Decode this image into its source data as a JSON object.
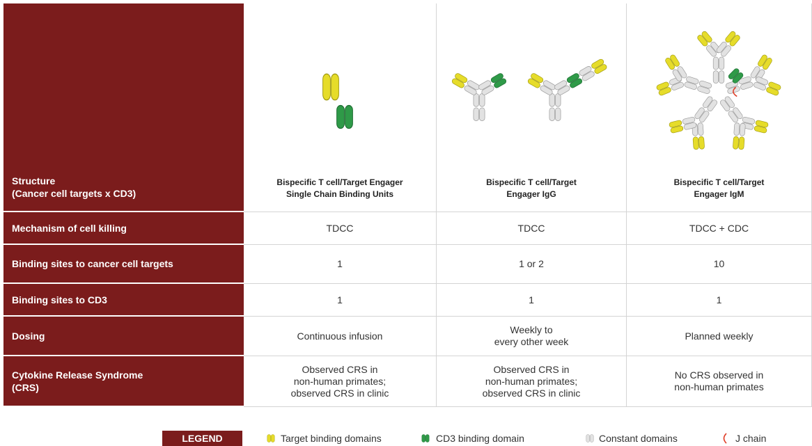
{
  "table": {
    "rows": [
      {
        "label": [
          "Structure",
          "(Cancer cell targets x CD3)"
        ],
        "cells": [
          [
            "Bispecific T cell/Target Engager",
            "Single Chain Binding Units"
          ],
          [
            "Bispecific T cell/Target",
            "Engager IgG"
          ],
          [
            "Bispecific T cell/Target",
            "Engager IgM"
          ]
        ]
      },
      {
        "label": [
          "Mechanism of cell killing"
        ],
        "cells": [
          [
            "TDCC"
          ],
          [
            "TDCC"
          ],
          [
            "TDCC + CDC"
          ]
        ]
      },
      {
        "label": [
          "Binding sites to cancer cell targets"
        ],
        "cells": [
          [
            "1"
          ],
          [
            "1 or 2"
          ],
          [
            "10"
          ]
        ]
      },
      {
        "label": [
          "Binding sites to CD3"
        ],
        "cells": [
          [
            "1"
          ],
          [
            "1"
          ],
          [
            "1"
          ]
        ]
      },
      {
        "label": [
          "Dosing"
        ],
        "cells": [
          [
            "Continuous infusion"
          ],
          [
            "Weekly to",
            "every other week"
          ],
          [
            "Planned weekly"
          ]
        ]
      },
      {
        "label": [
          "Cytokine Release Syndrome",
          "(CRS)"
        ],
        "cells": [
          [
            "Observed CRS in",
            "non-human primates;",
            "observed CRS in clinic"
          ],
          [
            "Observed CRS in",
            "non-human primates;",
            "observed CRS in clinic"
          ],
          [
            "No CRS observed in",
            "non-human primates"
          ]
        ]
      }
    ]
  },
  "legend": {
    "title": "LEGEND",
    "items": [
      "Target binding domains",
      "CD3 binding domain",
      "Constant domains",
      "J chain"
    ]
  }
}
